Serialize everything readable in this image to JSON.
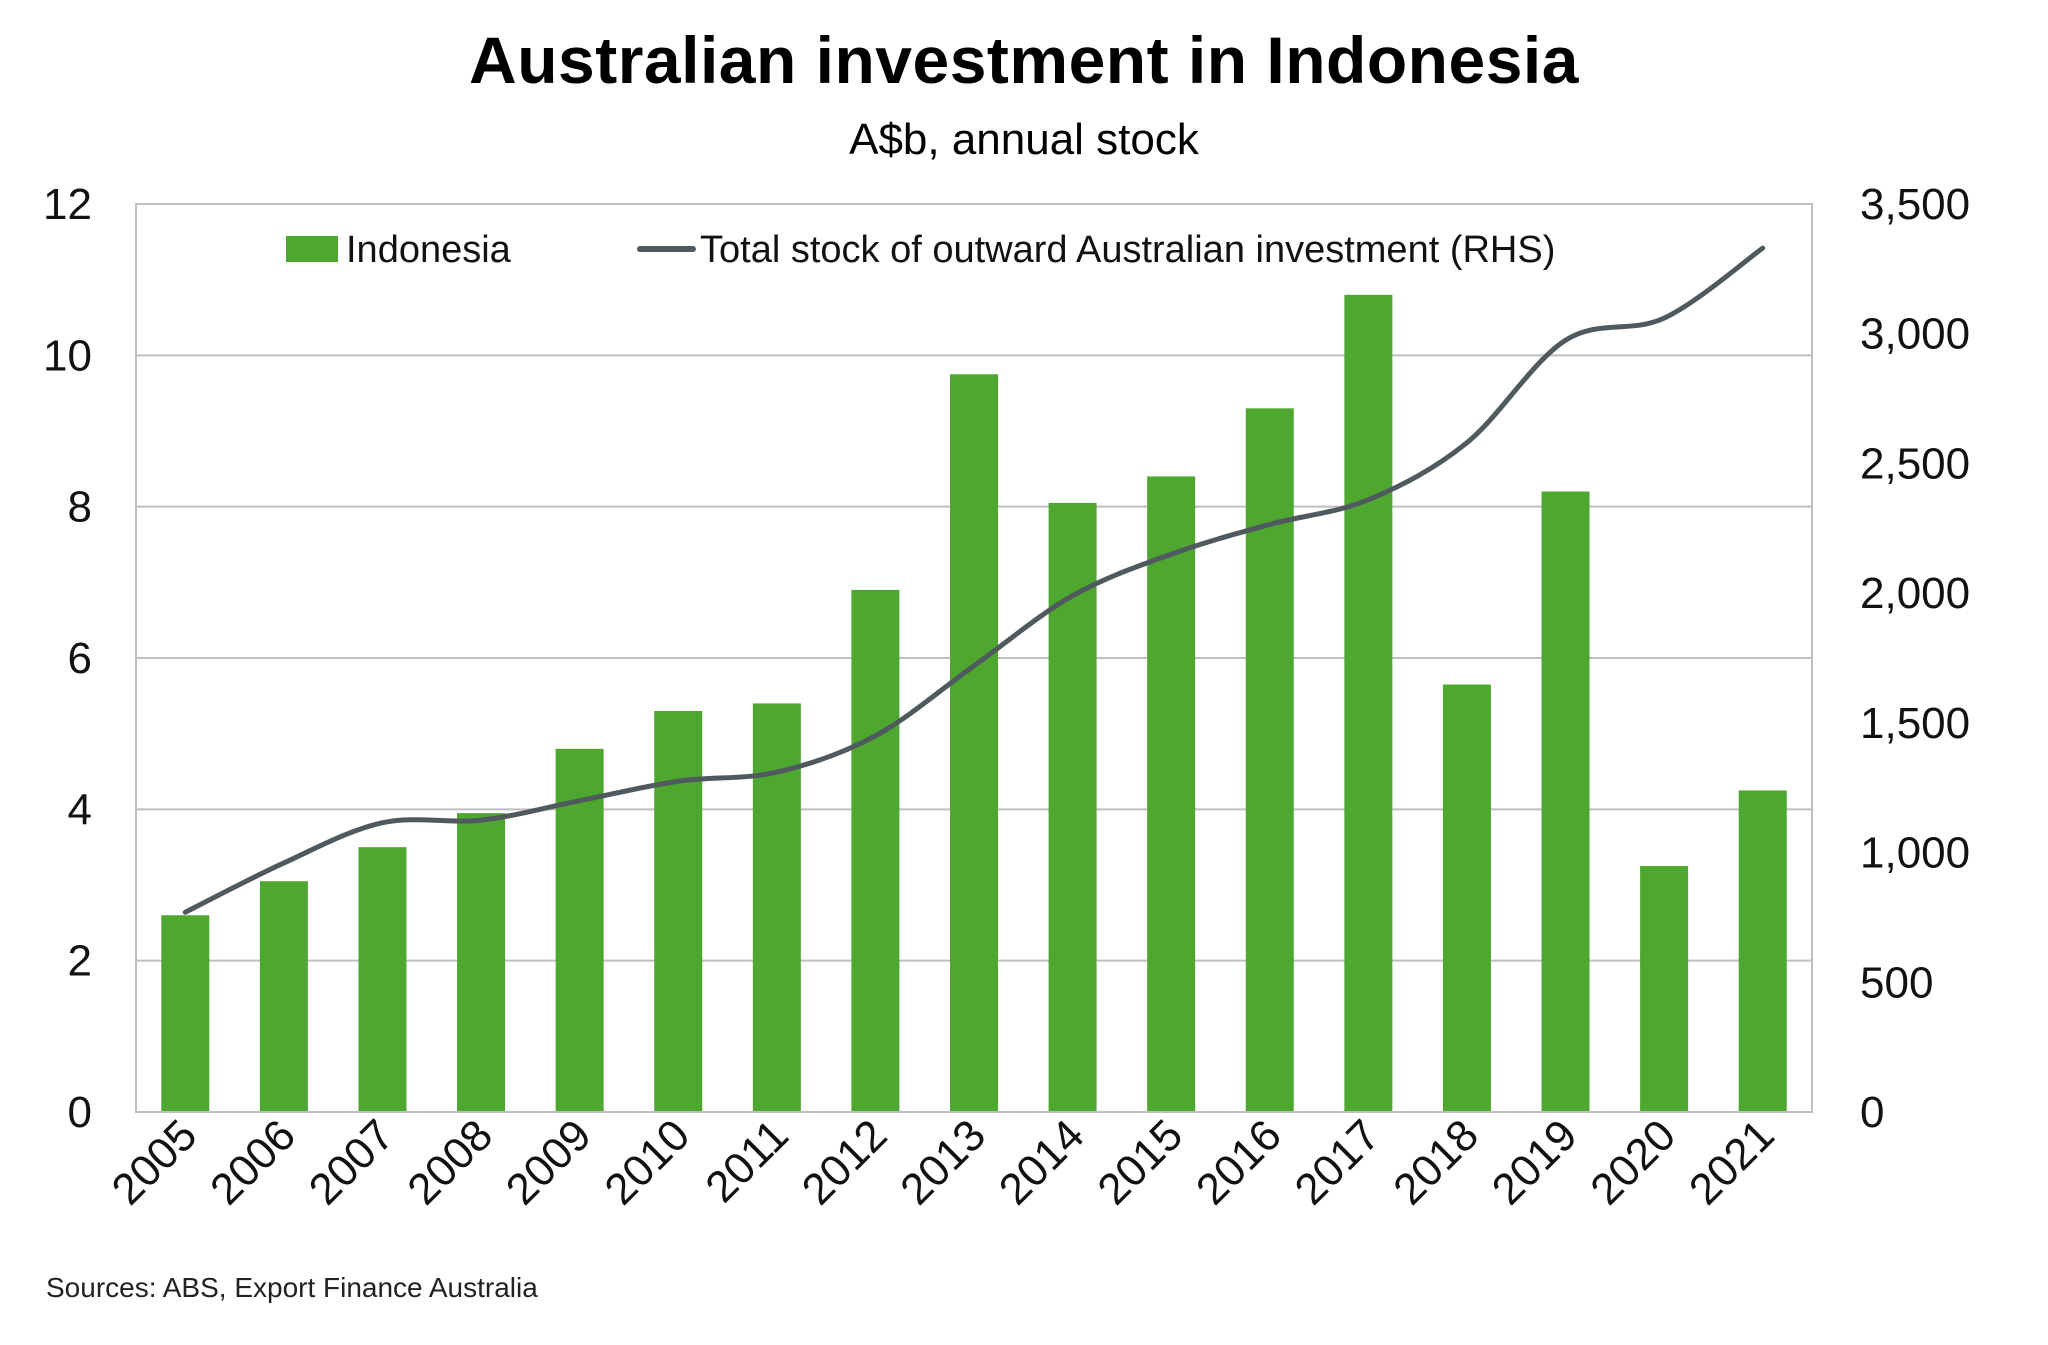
{
  "chart_data": {
    "type": "bar",
    "title": "Australian investment in Indonesia",
    "subtitle": "A$b, annual stock",
    "source": "Sources: ABS, Export Finance Australia",
    "categories": [
      "2005",
      "2006",
      "2007",
      "2008",
      "2009",
      "2010",
      "2011",
      "2012",
      "2013",
      "2014",
      "2015",
      "2016",
      "2017",
      "2018",
      "2019",
      "2020",
      "2021"
    ],
    "series": [
      {
        "name": "Indonesia",
        "kind": "bar",
        "axis": "left",
        "color": "#4EA72E",
        "values": [
          2.6,
          3.05,
          3.5,
          3.95,
          4.8,
          5.3,
          5.4,
          6.9,
          9.75,
          8.05,
          8.4,
          9.3,
          10.8,
          5.65,
          8.2,
          3.25,
          4.25
        ]
      },
      {
        "name": "Total stock of outward Australian investment (RHS)",
        "kind": "line",
        "axis": "right",
        "color": "#4E5A5E",
        "values": [
          770,
          960,
          1115,
          1125,
          1200,
          1275,
          1310,
          1450,
          1720,
          1990,
          2150,
          2265,
          2360,
          2580,
          2975,
          3060,
          3330
        ]
      }
    ],
    "y_left": {
      "min": 0,
      "max": 12,
      "ticks": [
        "0",
        "2",
        "4",
        "6",
        "8",
        "10",
        "12"
      ]
    },
    "y_right": {
      "min": 0,
      "max": 3500,
      "ticks": [
        "0",
        "500",
        "1,000",
        "1,500",
        "2,000",
        "2,500",
        "3,000",
        "3,500"
      ]
    },
    "grid": true,
    "legend": "top"
  }
}
